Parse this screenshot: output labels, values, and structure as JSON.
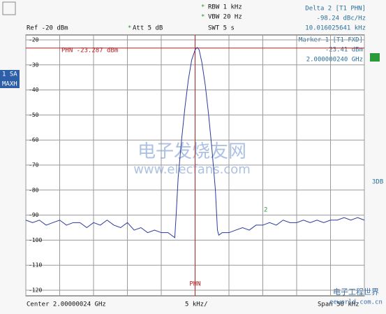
{
  "chart_data": {
    "type": "line",
    "settings": {
      "rbw": "RBW 1 kHz",
      "vbw": "VBW 20 Hz",
      "swt": "SWT 5 s",
      "ref": "Ref -20 dBm",
      "att": "Att 5 dB"
    },
    "delta_marker": {
      "title": "Delta 2 [T1 PHN]",
      "level": "-98.24 dBc/Hz",
      "offset": "10.016025641 kHz",
      "label": "2"
    },
    "marker": {
      "title": "Marker 1 [T1 FXD]",
      "level": "-23.41 dBm",
      "frequency": "2.000000240 GHz"
    },
    "trace_info": [
      "1 SA",
      "MAXH"
    ],
    "side_label": "3DB",
    "ref_line": {
      "value": -23.287,
      "label": "PHN -23.287 dBm"
    },
    "center_line": {
      "value": 0,
      "label": "PHN"
    },
    "footer": {
      "center": "Center 2.00000024 GHz",
      "scale": "5 kHz/",
      "span": "Span 50 kHz"
    },
    "watermarks": [
      "电子发烧友网",
      "www.elecfans.com",
      "电子工程世界",
      "eeworld.com.cn"
    ],
    "x": [
      -25,
      -24,
      -23,
      -22,
      -21,
      -20,
      -19,
      -18,
      -17,
      -16,
      -15,
      -14,
      -13,
      -12,
      -11,
      -10,
      -9,
      -8,
      -7,
      -6,
      -5,
      -4,
      -3.5,
      -3,
      -2.8,
      -2.5,
      -2,
      -1.5,
      -1,
      -0.5,
      0,
      0.3,
      0.6,
      1,
      1.5,
      2,
      2.5,
      3,
      3.3,
      3.5,
      4,
      5,
      6,
      7,
      8,
      9,
      10,
      11,
      12,
      13,
      14,
      15,
      16,
      17,
      18,
      19,
      20,
      21,
      22,
      23,
      24,
      25
    ],
    "series": [
      {
        "color": "#2b3a9c",
        "values": [
          -92,
          -93,
          -92,
          -94,
          -93,
          -92,
          -94,
          -93,
          -93,
          -95,
          -93,
          -94,
          -92,
          -94,
          -95,
          -93,
          -96,
          -95,
          -97,
          -96,
          -97,
          -97,
          -98,
          -99,
          -90,
          -75,
          -60,
          -47,
          -36,
          -28,
          -24,
          -23,
          -24,
          -29,
          -38,
          -50,
          -64,
          -80,
          -96,
          -98,
          -97,
          -97,
          -96,
          -95,
          -96,
          -94,
          -94,
          -93,
          -94,
          -92,
          -93,
          -93,
          -92,
          -93,
          -92,
          -93,
          -92,
          -92,
          -91,
          -92,
          -91,
          -92
        ]
      }
    ],
    "xlim": [
      -25,
      25
    ],
    "xticks": [
      -25,
      -20,
      -15,
      -10,
      -5,
      0,
      5,
      10,
      15,
      20,
      25
    ],
    "ylim": [
      -120,
      -20
    ],
    "yticks": [
      -20,
      -30,
      -40,
      -50,
      -60,
      -70,
      -80,
      -90,
      -100,
      -110,
      -120
    ],
    "grid": true
  }
}
